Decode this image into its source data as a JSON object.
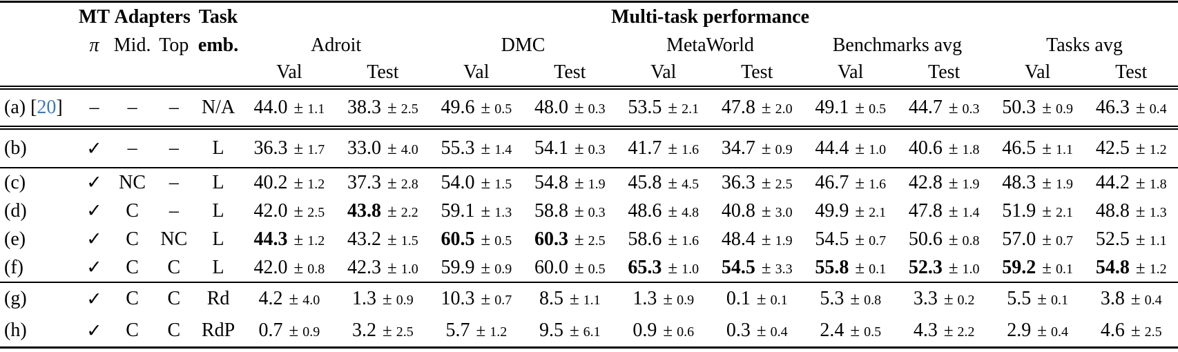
{
  "colors": {
    "citation": "#3d79b8",
    "text": "#000000"
  },
  "glyphs": {
    "pm": "±",
    "check": "✓",
    "dash": "–"
  },
  "table": {
    "header": {
      "group_mt": "MT",
      "group_adapters": "Adapters",
      "group_task": "Task",
      "group_multitask": "Multi-task performance",
      "col_pi": "π",
      "col_mid": "Mid.",
      "col_top": "Top",
      "col_emb": "emb.",
      "benchmarks": [
        "Adroit",
        "DMC",
        "MetaWorld",
        "Benchmarks avg",
        "Tasks avg"
      ],
      "subcols": [
        "Val",
        "Test"
      ]
    },
    "rows": [
      {
        "row_class": "r-a",
        "rule": "none",
        "label_parts": [
          {
            "t": "(a) ["
          },
          {
            "t": "20",
            "c": "citation"
          },
          {
            "t": "]"
          }
        ],
        "mt": "–",
        "mid": "–",
        "top": "–",
        "emb": "N/A",
        "values": [
          {
            "mean": "44.0",
            "std": "1.1",
            "bold": false
          },
          {
            "mean": "38.3",
            "std": "2.5",
            "bold": false
          },
          {
            "mean": "49.6",
            "std": "0.5",
            "bold": false
          },
          {
            "mean": "48.0",
            "std": "0.3",
            "bold": false
          },
          {
            "mean": "53.5",
            "std": "2.1",
            "bold": false
          },
          {
            "mean": "47.8",
            "std": "2.0",
            "bold": false
          },
          {
            "mean": "49.1",
            "std": "0.5",
            "bold": false
          },
          {
            "mean": "44.7",
            "std": "0.3",
            "bold": false
          },
          {
            "mean": "50.3",
            "std": "0.9",
            "bold": false
          },
          {
            "mean": "46.3",
            "std": "0.4",
            "bold": false
          }
        ]
      },
      {
        "row_class": "r-b",
        "rule": "double",
        "label_parts": [
          {
            "t": "(b)"
          }
        ],
        "mt": "✓",
        "mid": "–",
        "top": "–",
        "emb": "L",
        "values": [
          {
            "mean": "36.3",
            "std": "1.7",
            "bold": false
          },
          {
            "mean": "33.0",
            "std": "4.0",
            "bold": false
          },
          {
            "mean": "55.3",
            "std": "1.4",
            "bold": false
          },
          {
            "mean": "54.1",
            "std": "0.3",
            "bold": false
          },
          {
            "mean": "41.7",
            "std": "1.6",
            "bold": false
          },
          {
            "mean": "34.7",
            "std": "0.9",
            "bold": false
          },
          {
            "mean": "44.4",
            "std": "1.0",
            "bold": false
          },
          {
            "mean": "40.6",
            "std": "1.8",
            "bold": false
          },
          {
            "mean": "46.5",
            "std": "1.1",
            "bold": false
          },
          {
            "mean": "42.5",
            "std": "1.2",
            "bold": false
          }
        ]
      },
      {
        "row_class": "r-m",
        "rule": "single",
        "label_parts": [
          {
            "t": "(c)"
          }
        ],
        "mt": "✓",
        "mid": "NC",
        "top": "–",
        "emb": "L",
        "values": [
          {
            "mean": "40.2",
            "std": "1.2",
            "bold": false
          },
          {
            "mean": "37.3",
            "std": "2.8",
            "bold": false
          },
          {
            "mean": "54.0",
            "std": "1.5",
            "bold": false
          },
          {
            "mean": "54.8",
            "std": "1.9",
            "bold": false
          },
          {
            "mean": "45.8",
            "std": "4.5",
            "bold": false
          },
          {
            "mean": "36.3",
            "std": "2.5",
            "bold": false
          },
          {
            "mean": "46.7",
            "std": "1.6",
            "bold": false
          },
          {
            "mean": "42.8",
            "std": "1.9",
            "bold": false
          },
          {
            "mean": "48.3",
            "std": "1.9",
            "bold": false
          },
          {
            "mean": "44.2",
            "std": "1.8",
            "bold": false
          }
        ]
      },
      {
        "row_class": "r-m",
        "rule": "none",
        "label_parts": [
          {
            "t": "(d)"
          }
        ],
        "mt": "✓",
        "mid": "C",
        "top": "–",
        "emb": "L",
        "values": [
          {
            "mean": "42.0",
            "std": "2.5",
            "bold": false
          },
          {
            "mean": "43.8",
            "std": "2.2",
            "bold": true
          },
          {
            "mean": "59.1",
            "std": "1.3",
            "bold": false
          },
          {
            "mean": "58.8",
            "std": "0.3",
            "bold": false
          },
          {
            "mean": "48.6",
            "std": "4.8",
            "bold": false
          },
          {
            "mean": "40.8",
            "std": "3.0",
            "bold": false
          },
          {
            "mean": "49.9",
            "std": "2.1",
            "bold": false
          },
          {
            "mean": "47.8",
            "std": "1.4",
            "bold": false
          },
          {
            "mean": "51.9",
            "std": "2.1",
            "bold": false
          },
          {
            "mean": "48.8",
            "std": "1.3",
            "bold": false
          }
        ]
      },
      {
        "row_class": "r-m",
        "rule": "none",
        "label_parts": [
          {
            "t": "(e)"
          }
        ],
        "mt": "✓",
        "mid": "C",
        "top": "NC",
        "emb": "L",
        "values": [
          {
            "mean": "44.3",
            "std": "1.2",
            "bold": true
          },
          {
            "mean": "43.2",
            "std": "1.5",
            "bold": false
          },
          {
            "mean": "60.5",
            "std": "0.5",
            "bold": true
          },
          {
            "mean": "60.3",
            "std": "2.5",
            "bold": true
          },
          {
            "mean": "58.6",
            "std": "1.6",
            "bold": false
          },
          {
            "mean": "48.4",
            "std": "1.9",
            "bold": false
          },
          {
            "mean": "54.5",
            "std": "0.7",
            "bold": false
          },
          {
            "mean": "50.6",
            "std": "0.8",
            "bold": false
          },
          {
            "mean": "57.0",
            "std": "0.7",
            "bold": false
          },
          {
            "mean": "52.5",
            "std": "1.1",
            "bold": false
          }
        ]
      },
      {
        "row_class": "r-m",
        "rule": "none",
        "label_parts": [
          {
            "t": "(f)"
          }
        ],
        "mt": "✓",
        "mid": "C",
        "top": "C",
        "emb": "L",
        "values": [
          {
            "mean": "42.0",
            "std": "0.8",
            "bold": false
          },
          {
            "mean": "42.3",
            "std": "1.0",
            "bold": false
          },
          {
            "mean": "59.9",
            "std": "0.9",
            "bold": false
          },
          {
            "mean": "60.0",
            "std": "0.5",
            "bold": false
          },
          {
            "mean": "65.3",
            "std": "1.0",
            "bold": true
          },
          {
            "mean": "54.5",
            "std": "3.3",
            "bold": true
          },
          {
            "mean": "55.8",
            "std": "0.1",
            "bold": true
          },
          {
            "mean": "52.3",
            "std": "1.0",
            "bold": true
          },
          {
            "mean": "59.2",
            "std": "0.1",
            "bold": true
          },
          {
            "mean": "54.8",
            "std": "1.2",
            "bold": true
          }
        ]
      },
      {
        "row_class": "r-g",
        "rule": "single",
        "label_parts": [
          {
            "t": "(g)"
          }
        ],
        "mt": "✓",
        "mid": "C",
        "top": "C",
        "emb": "Rd",
        "values": [
          {
            "mean": "4.2",
            "std": "4.0",
            "bold": false
          },
          {
            "mean": "1.3",
            "std": "0.9",
            "bold": false
          },
          {
            "mean": "10.3",
            "std": "0.7",
            "bold": false
          },
          {
            "mean": "8.5",
            "std": "1.1",
            "bold": false
          },
          {
            "mean": "1.3",
            "std": "0.9",
            "bold": false
          },
          {
            "mean": "0.1",
            "std": "0.1",
            "bold": false
          },
          {
            "mean": "5.3",
            "std": "0.8",
            "bold": false
          },
          {
            "mean": "3.3",
            "std": "0.2",
            "bold": false
          },
          {
            "mean": "5.5",
            "std": "0.1",
            "bold": false
          },
          {
            "mean": "3.8",
            "std": "0.4",
            "bold": false
          }
        ]
      },
      {
        "row_class": "r-g",
        "rule": "none",
        "label_parts": [
          {
            "t": "(h)"
          }
        ],
        "mt": "✓",
        "mid": "C",
        "top": "C",
        "emb": "RdP",
        "values": [
          {
            "mean": "0.7",
            "std": "0.9",
            "bold": false
          },
          {
            "mean": "3.2",
            "std": "2.5",
            "bold": false
          },
          {
            "mean": "5.7",
            "std": "1.2",
            "bold": false
          },
          {
            "mean": "9.5",
            "std": "6.1",
            "bold": false
          },
          {
            "mean": "0.9",
            "std": "0.6",
            "bold": false
          },
          {
            "mean": "0.3",
            "std": "0.4",
            "bold": false
          },
          {
            "mean": "2.4",
            "std": "0.5",
            "bold": false
          },
          {
            "mean": "4.3",
            "std": "2.2",
            "bold": false
          },
          {
            "mean": "2.9",
            "std": "0.4",
            "bold": false
          },
          {
            "mean": "4.6",
            "std": "2.5",
            "bold": false
          }
        ]
      }
    ]
  }
}
